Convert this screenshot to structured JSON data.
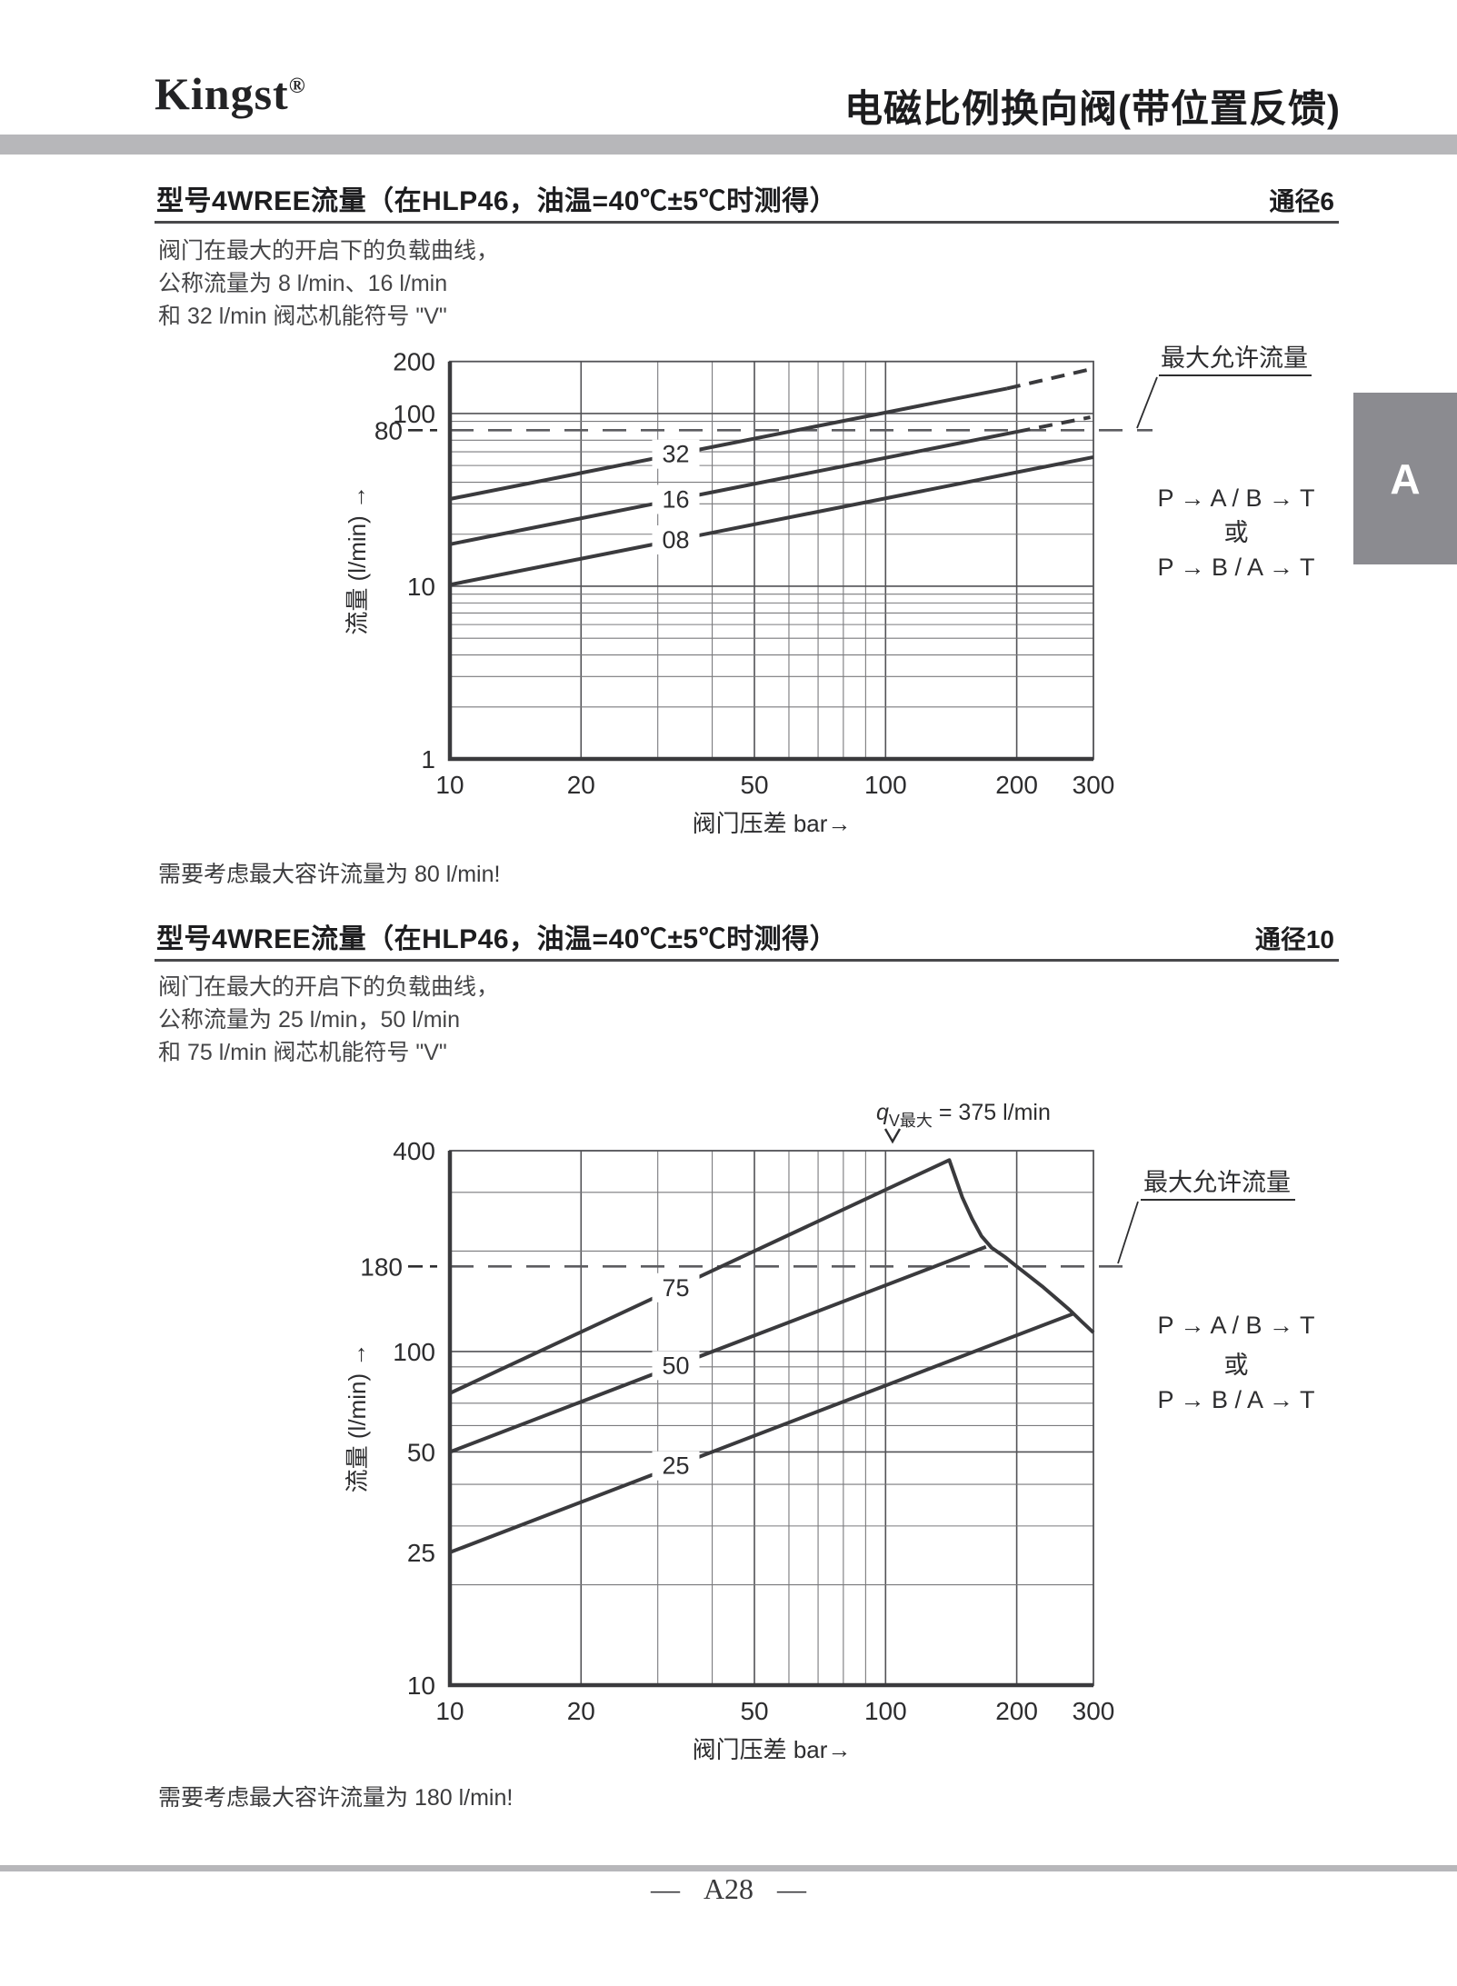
{
  "header": {
    "brand": "Kingst",
    "registered": "®",
    "title": "电磁比例换向阀(带位置反馈)"
  },
  "sections": [
    {
      "title": "型号4WREE流量（在HLP46，油温=40℃±5℃时测得）",
      "size_label": "通径6",
      "description_lines": [
        "阀门在最大的开启下的负载曲线，",
        "公称流量为 8 l/min、16 l/min",
        "和 32 l/min 阀芯机能符号 \"V\""
      ],
      "note": "需要考虑最大容许流量为 80 l/min!"
    },
    {
      "title": "型号4WREE流量（在HLP46，油温=40℃±5℃时测得）",
      "size_label": "通径10",
      "description_lines": [
        "阀门在最大的开启下的负载曲线，",
        "公称流量为 25 l/min，50 l/min",
        "和 75 l/min 阀芯机能符号 \"V\""
      ],
      "note": "需要考虑最大容许流量为 180 l/min!"
    }
  ],
  "side_tab": {
    "label": "A"
  },
  "footer": {
    "dash": "—",
    "page_number": "A28"
  },
  "colors": {
    "accent_bar": "#b7b7ba",
    "side_tab_bg": "#8b8b90",
    "side_tab_fg": "#ffffff",
    "ink": "#2d2d2f",
    "curve": "#3a3a3d",
    "grid_minor": "#7a7a7d",
    "grid_major": "#525256",
    "dashed_line": "#5c5c60"
  },
  "chart_data": [
    {
      "type": "line",
      "xscale": "log",
      "yscale": "log",
      "xlabel": "阀门压差 bar→",
      "ylabel": "流量 (l/min) →",
      "xlim": [
        10,
        300
      ],
      "ylim": [
        1,
        200
      ],
      "x_ticks": [
        10,
        20,
        50,
        100,
        200,
        300
      ],
      "y_ticks": [
        1,
        10,
        80,
        100,
        200
      ],
      "dashed_y_ticks": [
        80
      ],
      "max_allowed_flow": {
        "value": 80,
        "label": "最大允许流量"
      },
      "series": [
        {
          "name": "32",
          "label_at_x": 33,
          "points": [
            [
              10,
              32
            ],
            [
              190,
              139.5
            ]
          ],
          "dashed_points": [
            [
              190,
              139.5
            ],
            [
              300,
              182
            ]
          ]
        },
        {
          "name": "16",
          "label_at_x": 33,
          "points": [
            [
              10,
              17.5
            ],
            [
              200,
              78.3
            ]
          ],
          "dashed_points": [
            [
              200,
              78.3
            ],
            [
              295,
              95
            ]
          ]
        },
        {
          "name": "08",
          "label_at_x": 33,
          "points": [
            [
              10,
              10.2
            ],
            [
              300,
              55.9
            ]
          ]
        }
      ],
      "flow_path_lines": [
        "P → A / B → T",
        "或",
        "P → B / A → T"
      ]
    },
    {
      "type": "line",
      "xscale": "log",
      "yscale": "log",
      "xlabel": "阀门压差 bar→",
      "ylabel": "流量 (l/min) →",
      "xlim": [
        10,
        300
      ],
      "ylim": [
        10,
        400
      ],
      "x_ticks": [
        10,
        20,
        50,
        100,
        200,
        300
      ],
      "y_ticks": [
        10,
        25,
        50,
        100,
        180,
        400
      ],
      "dashed_y_ticks": [
        180
      ],
      "max_allowed_flow": {
        "value": 180,
        "label": "最大允许流量"
      },
      "qv_max_annotation": {
        "symbol": "q",
        "subscript": "V最大",
        "text": "= 375 l/min",
        "arrow_at_x": 104
      },
      "series": [
        {
          "name": "75",
          "label_at_x": 33,
          "points": [
            [
              10,
              75
            ],
            [
              140,
              375
            ],
            [
              150,
              290
            ],
            [
              158,
              250
            ],
            [
              166,
              222
            ],
            [
              175,
              205
            ],
            [
              188,
              192
            ],
            [
              200,
              180
            ],
            [
              214,
              168
            ],
            [
              230,
              156
            ],
            [
              247,
              144
            ],
            [
              265,
              133
            ],
            [
              282,
              123
            ],
            [
              300,
              114
            ]
          ]
        },
        {
          "name": "50",
          "label_at_x": 33,
          "points": [
            [
              10,
              50
            ],
            [
              170,
              206
            ]
          ]
        },
        {
          "name": "25",
          "label_at_x": 33,
          "points": [
            [
              10,
              25
            ],
            [
              270,
              130
            ]
          ]
        }
      ],
      "flow_path_lines": [
        "P → A / B → T",
        "或",
        "P → B / A → T"
      ]
    }
  ]
}
